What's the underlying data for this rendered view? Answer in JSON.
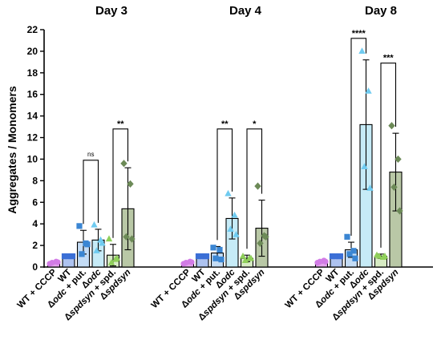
{
  "chart_data": {
    "type": "bar",
    "ylabel": "Aggregates / Monomers",
    "ylim": [
      0,
      22
    ],
    "yticks": [
      0,
      2,
      4,
      6,
      8,
      10,
      12,
      14,
      16,
      18,
      20,
      22
    ],
    "colors": {
      "WT + CCCP": "#e5a5ee",
      "WT": "#aec3f0",
      "Δodc + put.": "#c4dcf5",
      "Δodc": "#c6ebf7",
      "Δspdsyn + spd.": "#d7ebc4",
      "Δspdsyn": "#b9c8a6"
    },
    "point_colors": {
      "WT + CCCP": "#d27ce6",
      "WT": "#3b6fd6",
      "Δodc + put.": "#3b86d3",
      "Δodc": "#6fcbf0",
      "Δspdsyn + spd.": "#8fcf5a",
      "Δspdsyn": "#6c8a57"
    },
    "panels": [
      {
        "title": "Day 3",
        "categories": [
          {
            "label": "WT + CCCP",
            "value": 0.4,
            "error": 0.1,
            "points": [
              0.3,
              0.5,
              0.4,
              0.45
            ]
          },
          {
            "label": "WT",
            "value": 1.0,
            "error": 0.05,
            "points": [
              1.0,
              1.0,
              1.0,
              1.0
            ]
          },
          {
            "label": "Δodc + put.",
            "value": 2.3,
            "error": 1.1,
            "points": [
              3.8,
              2.2,
              1.2,
              2.1
            ]
          },
          {
            "label": "Δodc",
            "value": 2.5,
            "error": 1.0,
            "points": [
              3.9,
              2.5,
              1.5,
              2.2
            ]
          },
          {
            "label": "Δspdsyn + spd.",
            "value": 1.1,
            "error": 1.0,
            "points": [
              2.6,
              0.7,
              0.4,
              0.8
            ]
          },
          {
            "label": "Δspdsyn",
            "value": 5.4,
            "error": 3.8,
            "points": [
              9.6,
              7.7,
              2.8,
              2.6
            ]
          }
        ],
        "comparisons": [
          {
            "from": 2,
            "to": 3,
            "label": "ns",
            "y": 9.9
          },
          {
            "from": 4,
            "to": 5,
            "label": "**",
            "y": 12.8
          }
        ]
      },
      {
        "title": "Day 4",
        "categories": [
          {
            "label": "WT + CCCP",
            "value": 0.4,
            "error": 0.1,
            "points": [
              0.3,
              0.5,
              0.4,
              0.45
            ]
          },
          {
            "label": "WT",
            "value": 1.0,
            "error": 0.05,
            "points": [
              1.0,
              1.0,
              1.0,
              1.0
            ]
          },
          {
            "label": "Δodc + put.",
            "value": 1.3,
            "error": 0.6,
            "points": [
              1.8,
              1.6,
              0.8,
              0.7
            ]
          },
          {
            "label": "Δodc",
            "value": 4.5,
            "error": 1.9,
            "points": [
              6.8,
              4.8,
              3.5,
              3.0
            ]
          },
          {
            "label": "Δspdsyn + spd.",
            "value": 0.8,
            "error": 0.3,
            "points": [
              1.0,
              0.8,
              0.6,
              0.8
            ]
          },
          {
            "label": "Δspdsyn",
            "value": 3.6,
            "error": 2.6,
            "points": [
              7.5,
              2.9,
              2.2,
              2.8
            ]
          }
        ],
        "comparisons": [
          {
            "from": 2,
            "to": 3,
            "label": "**",
            "y": 12.8
          },
          {
            "from": 4,
            "to": 5,
            "label": "*",
            "y": 12.8
          }
        ]
      },
      {
        "title": "Day 8",
        "categories": [
          {
            "label": "WT + CCCP",
            "value": 0.5,
            "error": 0.1,
            "points": [
              0.4,
              0.6,
              0.5,
              0.5
            ]
          },
          {
            "label": "WT",
            "value": 1.0,
            "error": 0.05,
            "points": [
              1.0,
              1.0,
              1.0,
              1.0
            ]
          },
          {
            "label": "Δodc + put.",
            "value": 1.6,
            "error": 0.7,
            "points": [
              2.8,
              1.5,
              1.2,
              0.8
            ]
          },
          {
            "label": "Δodc",
            "value": 13.2,
            "error": 6.0,
            "points": [
              20.0,
              16.3,
              9.3,
              7.3
            ]
          },
          {
            "label": "Δspdsyn + spd.",
            "value": 1.0,
            "error": 0.2,
            "points": [
              1.1,
              0.9,
              1.0,
              1.0
            ]
          },
          {
            "label": "Δspdsyn",
            "value": 8.8,
            "error": 3.6,
            "points": [
              13.1,
              10.0,
              7.4,
              5.2
            ]
          }
        ],
        "comparisons": [
          {
            "from": 2,
            "to": 3,
            "label": "****",
            "y": 21.2
          },
          {
            "from": 4,
            "to": 5,
            "label": "***",
            "y": 18.9
          }
        ]
      }
    ]
  }
}
